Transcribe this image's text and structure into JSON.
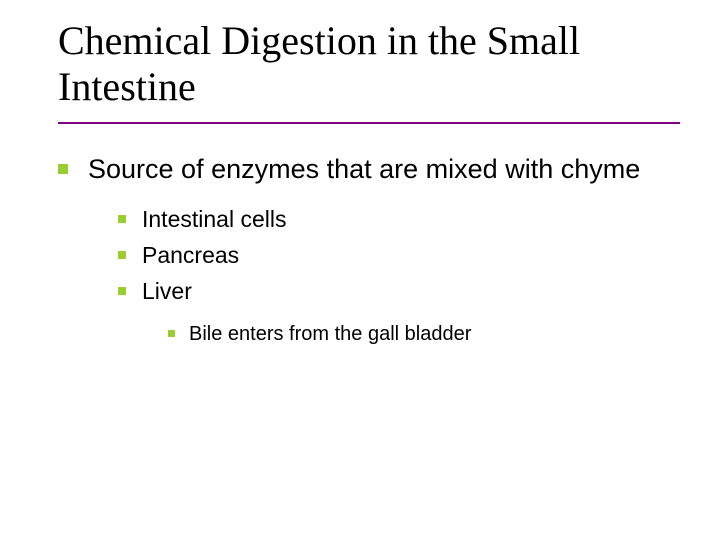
{
  "slide": {
    "title": "Chemical Digestion in the Small Intestine",
    "title_fontsize": 40,
    "title_font_family": "Times New Roman",
    "title_underline_color": "#800080",
    "bullet_color": "#9acd32",
    "background_color": "#ffffff",
    "text_color": "#000000",
    "body_font_family": "Verdana",
    "level1": {
      "text": "Source of enzymes that are mixed with chyme",
      "fontsize": 27
    },
    "level2": [
      {
        "text": "Intestinal cells"
      },
      {
        "text": "Pancreas"
      },
      {
        "text": "Liver"
      }
    ],
    "level2_fontsize": 23,
    "level3": [
      {
        "text": "Bile enters from the gall bladder"
      }
    ],
    "level3_fontsize": 20
  }
}
